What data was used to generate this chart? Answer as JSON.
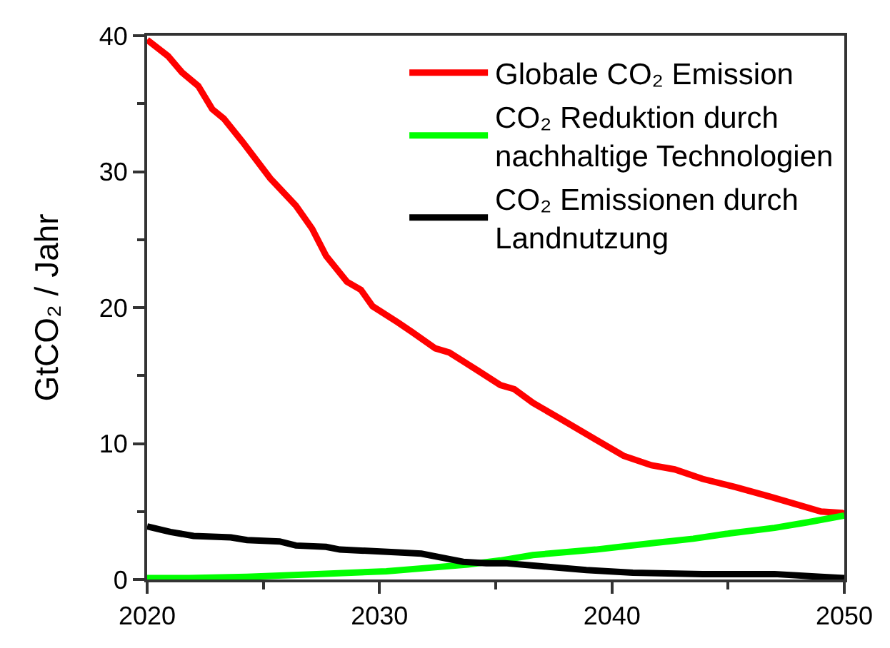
{
  "chart_data": {
    "type": "line",
    "ylabel": "GtCO₂ / Jahr",
    "legend": "top right",
    "line_style": "solid",
    "xlim": [
      2020,
      2050
    ],
    "xticks": [
      2020,
      {
        "value": 2025,
        "label": null
      },
      2030,
      {
        "value": 2035,
        "label": null
      },
      2040,
      {
        "value": 2045,
        "label": null
      },
      2050
    ],
    "ylim": [
      0,
      40
    ],
    "yticks": [
      0,
      {
        "value": 5,
        "label": null
      },
      10,
      {
        "value": 15,
        "label": null
      },
      20,
      {
        "value": 25,
        "label": null
      },
      30,
      {
        "value": 35,
        "label": null
      },
      40
    ],
    "series": [
      {
        "name": "Globale CO₂ Emission",
        "color": "#ff0000",
        "x": [
          2020,
          2020.9,
          2021.5,
          2022.2,
          2022.8,
          2023.3,
          2024.1,
          2025.3,
          2026.4,
          2027.1,
          2027.7,
          2028.6,
          2029.2,
          2029.7,
          2030.8,
          2031.4,
          2032.4,
          2033,
          2034.2,
          2035.2,
          2035.8,
          2036.6,
          2037.8,
          2039.3,
          2040.5,
          2041.7,
          2042.7,
          2043.9,
          2045.3,
          2046.8,
          2047.8,
          2049,
          2049.9,
          2050
        ],
        "values": [
          39.7,
          38.5,
          37.3,
          36.3,
          34.6,
          33.9,
          32.2,
          29.5,
          27.5,
          25.8,
          23.8,
          21.9,
          21.3,
          20.1,
          18.9,
          18.2,
          17.0,
          16.7,
          15.4,
          14.3,
          14.0,
          13.0,
          11.8,
          10.3,
          9.1,
          8.4,
          8.1,
          7.4,
          6.8,
          6.1,
          5.6,
          5.0,
          4.9,
          4.8
        ]
      },
      {
        "name": "CO₂ Reduktion durch\nnachhaltige Technologien",
        "color": "#00ff00",
        "x": [
          2020,
          2021.8,
          2024.3,
          2027.3,
          2030.3,
          2032.4,
          2033.8,
          2035.2,
          2036.6,
          2039.3,
          2041.9,
          2043.5,
          2045.1,
          2047,
          2048.4,
          2050
        ],
        "values": [
          0.1,
          0.1,
          0.2,
          0.4,
          0.6,
          0.9,
          1.1,
          1.4,
          1.8,
          2.2,
          2.7,
          3.0,
          3.4,
          3.8,
          4.2,
          4.7
        ]
      },
      {
        "name": "CO₂ Emissionen durch\nLandnutzung",
        "color": "#000000",
        "x": [
          2020,
          2021,
          2022,
          2023.6,
          2024.3,
          2025.7,
          2026.4,
          2027.7,
          2028.3,
          2030.8,
          2031.8,
          2033,
          2033.6,
          2034.6,
          2035.4,
          2036.8,
          2038.9,
          2040.9,
          2043.9,
          2047,
          2049,
          2050
        ],
        "values": [
          3.9,
          3.5,
          3.2,
          3.1,
          2.9,
          2.8,
          2.5,
          2.4,
          2.2,
          2.0,
          1.9,
          1.5,
          1.3,
          1.2,
          1.2,
          1.0,
          0.7,
          0.5,
          0.4,
          0.4,
          0.2,
          0.1
        ]
      }
    ]
  }
}
